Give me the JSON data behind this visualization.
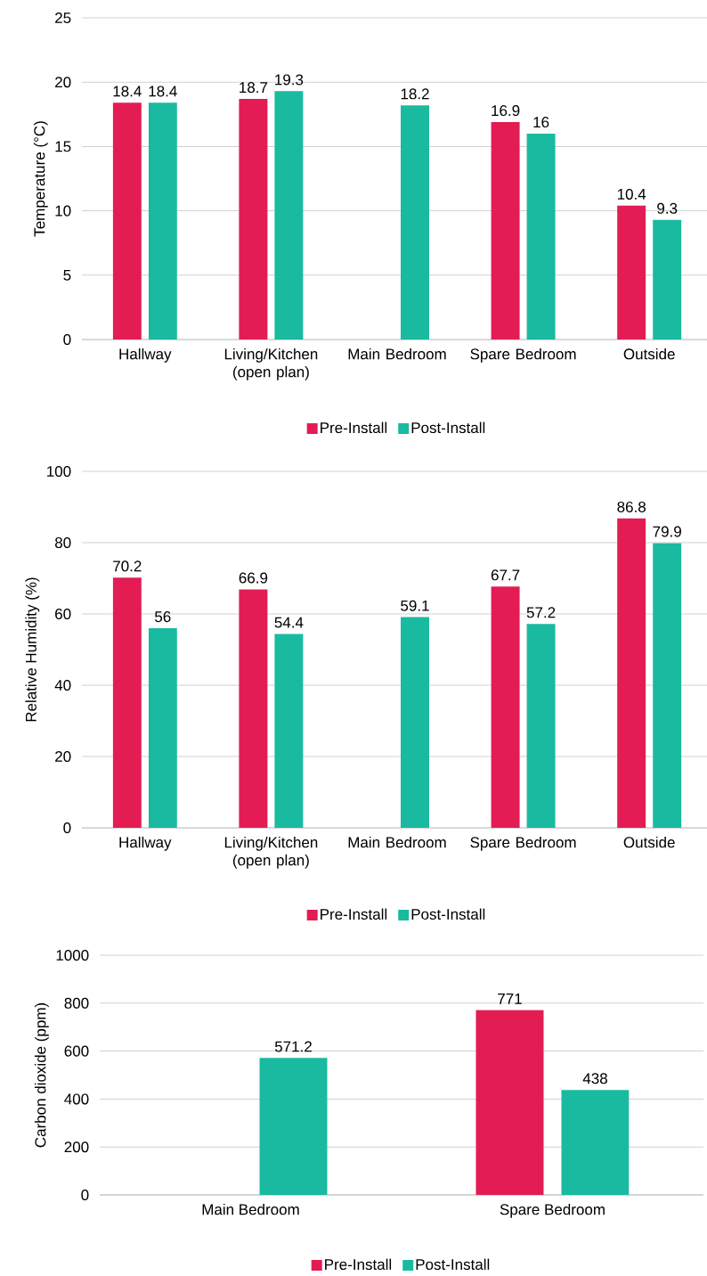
{
  "chart_data": [
    {
      "type": "bar",
      "ylabel": "Temperature (°C)",
      "categories": [
        "Hallway",
        "Living/Kitchen (open plan)",
        "Main Bedroom",
        "Spare Bedroom",
        "Outside"
      ],
      "series": [
        {
          "name": "Pre-Install",
          "color": "#e31c54",
          "values": [
            18.4,
            18.7,
            null,
            16.9,
            10.4
          ]
        },
        {
          "name": "Post-Install",
          "color": "#1abaa0",
          "values": [
            18.4,
            19.3,
            18.2,
            16,
            9.3
          ]
        }
      ],
      "ylim": [
        0,
        25
      ],
      "yticks": [
        0,
        5,
        10,
        15,
        20,
        25
      ],
      "grid": "y",
      "legend": "bottom",
      "data_labels": true
    },
    {
      "type": "bar",
      "ylabel": "Relative Humidity (%)",
      "categories": [
        "Hallway",
        "Living/Kitchen (open plan)",
        "Main Bedroom",
        "Spare Bedroom",
        "Outside"
      ],
      "series": [
        {
          "name": "Pre-Install",
          "color": "#e31c54",
          "values": [
            70.2,
            66.9,
            null,
            67.7,
            86.8
          ]
        },
        {
          "name": "Post-Install",
          "color": "#1abaa0",
          "values": [
            56,
            54.4,
            59.1,
            57.2,
            79.9
          ]
        }
      ],
      "ylim": [
        0,
        100
      ],
      "yticks": [
        0,
        20,
        40,
        60,
        80,
        100
      ],
      "grid": "y",
      "legend": "bottom",
      "data_labels": true
    },
    {
      "type": "bar",
      "ylabel": "Carbon dioxide (ppm)",
      "categories": [
        "Main Bedroom",
        "Spare Bedroom"
      ],
      "series": [
        {
          "name": "Pre-Install",
          "color": "#e31c54",
          "values": [
            null,
            771
          ]
        },
        {
          "name": "Post-Install",
          "color": "#1abaa0",
          "values": [
            571.2,
            438
          ]
        }
      ],
      "ylim": [
        0,
        1000
      ],
      "yticks": [
        0,
        200,
        400,
        600,
        800,
        1000
      ],
      "grid": "y",
      "legend": "bottom",
      "data_labels": true
    }
  ]
}
